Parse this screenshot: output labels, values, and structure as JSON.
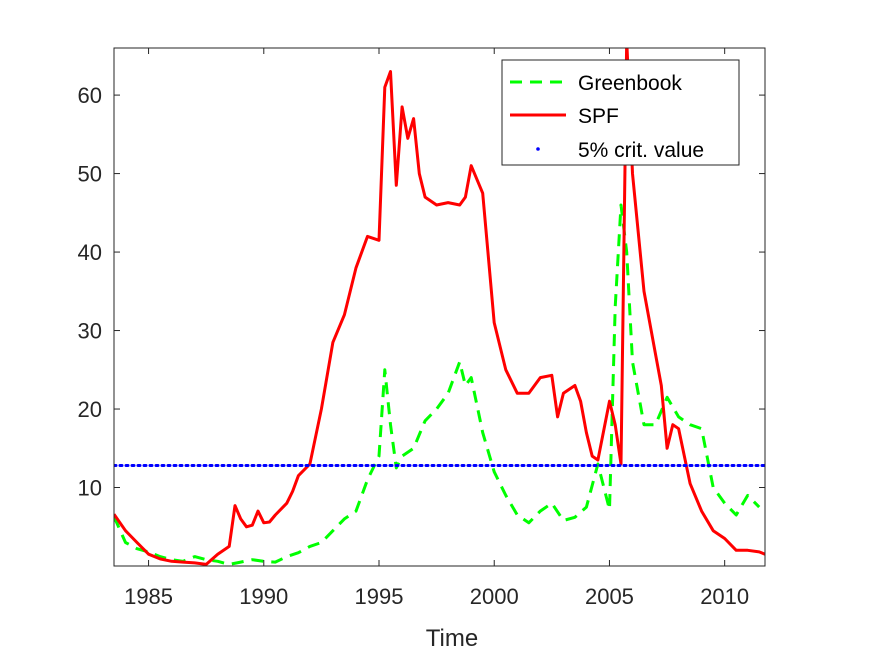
{
  "chart_data": {
    "type": "line",
    "title": "",
    "xlabel": "Time",
    "ylabel": "",
    "xlim": [
      1983.5,
      2011.75
    ],
    "ylim": [
      0,
      66
    ],
    "xticks": [
      1985,
      1990,
      1995,
      2000,
      2005,
      2010
    ],
    "xtick_labels": [
      "1985",
      "1990",
      "1995",
      "2000",
      "2005",
      "2010"
    ],
    "yticks": [
      10,
      20,
      30,
      40,
      50,
      60
    ],
    "ytick_labels": [
      "10",
      "20",
      "30",
      "40",
      "50",
      "60"
    ],
    "grid": false,
    "legend_position": "top-right",
    "series": [
      {
        "name": "Greenbook",
        "style": "dashed",
        "color": "#00ff00",
        "x": [
          1983.5,
          1984.0,
          1984.5,
          1985.0,
          1985.5,
          1986.0,
          1986.5,
          1987.0,
          1987.5,
          1988.0,
          1988.5,
          1989.0,
          1989.5,
          1990.0,
          1990.5,
          1991.0,
          1991.5,
          1992.0,
          1992.5,
          1993.0,
          1993.5,
          1994.0,
          1994.5,
          1995.0,
          1995.25,
          1995.5,
          1995.75,
          1996.0,
          1996.5,
          1997.0,
          1997.5,
          1998.0,
          1998.5,
          1998.75,
          1999.0,
          1999.5,
          2000.0,
          2000.5,
          2001.0,
          2001.5,
          2002.0,
          2002.5,
          2003.0,
          2003.5,
          2004.0,
          2004.5,
          2005.0,
          2005.25,
          2005.5,
          2005.75,
          2006.0,
          2006.5,
          2007.0,
          2007.5,
          2008.0,
          2008.5,
          2009.0,
          2009.5,
          2010.0,
          2010.5,
          2011.0,
          2011.5
        ],
        "y": [
          6.3,
          3.0,
          2.2,
          1.8,
          1.2,
          0.8,
          0.6,
          1.2,
          0.8,
          0.6,
          0.2,
          0.5,
          0.8,
          0.6,
          0.5,
          1.2,
          1.7,
          2.5,
          3.0,
          4.5,
          6.0,
          7.0,
          11.0,
          14.0,
          25.0,
          18.0,
          12.5,
          14.0,
          15.0,
          18.5,
          20.0,
          22.0,
          26.0,
          23.0,
          24.0,
          17.0,
          12.0,
          9.0,
          6.5,
          5.5,
          7.0,
          8.0,
          5.8,
          6.2,
          7.5,
          13.0,
          7.2,
          33.0,
          46.0,
          40.0,
          26.0,
          18.0,
          18.0,
          21.5,
          19.0,
          18.0,
          17.5,
          10.0,
          8.0,
          6.5,
          9.0,
          7.5
        ]
      },
      {
        "name": "SPF",
        "style": "solid",
        "color": "#ff0000",
        "x": [
          1983.5,
          1984.0,
          1984.5,
          1985.0,
          1985.5,
          1986.0,
          1986.5,
          1987.0,
          1987.5,
          1988.0,
          1988.5,
          1988.75,
          1989.0,
          1989.25,
          1989.5,
          1989.75,
          1990.0,
          1990.25,
          1990.5,
          1991.0,
          1991.25,
          1991.5,
          1992.0,
          1992.5,
          1993.0,
          1993.5,
          1994.0,
          1994.5,
          1995.0,
          1995.25,
          1995.5,
          1995.75,
          1996.0,
          1996.25,
          1996.5,
          1996.75,
          1997.0,
          1997.5,
          1998.0,
          1998.5,
          1998.75,
          1999.0,
          1999.5,
          2000.0,
          2000.5,
          2001.0,
          2001.5,
          2002.0,
          2002.5,
          2002.75,
          2003.0,
          2003.25,
          2003.5,
          2003.75,
          2004.0,
          2004.25,
          2004.5,
          2005.0,
          2005.25,
          2005.5,
          2005.75,
          2006.0,
          2006.5,
          2007.0,
          2007.25,
          2007.5,
          2007.75,
          2008.0,
          2008.5,
          2009.0,
          2009.5,
          2010.0,
          2010.5,
          2011.0,
          2011.5,
          2011.75
        ],
        "y": [
          6.6,
          4.5,
          3.0,
          1.5,
          0.9,
          0.6,
          0.5,
          0.4,
          0.2,
          1.5,
          2.5,
          7.7,
          6.0,
          5.0,
          5.2,
          7.0,
          5.5,
          5.6,
          6.5,
          8.0,
          9.5,
          11.5,
          13.0,
          20.0,
          28.5,
          32.0,
          38.0,
          42.0,
          41.5,
          61.0,
          63.0,
          48.5,
          58.5,
          54.5,
          57.0,
          50.0,
          47.0,
          46.0,
          46.3,
          46.0,
          47.0,
          51.0,
          47.5,
          31.0,
          25.0,
          22.0,
          22.0,
          24.0,
          24.3,
          19.0,
          22.0,
          22.5,
          23.0,
          21.0,
          17.0,
          14.0,
          13.5,
          21.0,
          18.0,
          13.0,
          67.0,
          50.0,
          35.0,
          27.0,
          23.0,
          15.0,
          18.0,
          17.5,
          10.5,
          7.0,
          4.5,
          3.5,
          2.0,
          2.0,
          1.8,
          1.5
        ]
      },
      {
        "name": "5% crit. value",
        "style": "dotted",
        "color": "#0000ff",
        "x": [
          1983.5,
          2011.75
        ],
        "y": [
          12.8,
          12.8
        ]
      }
    ]
  }
}
